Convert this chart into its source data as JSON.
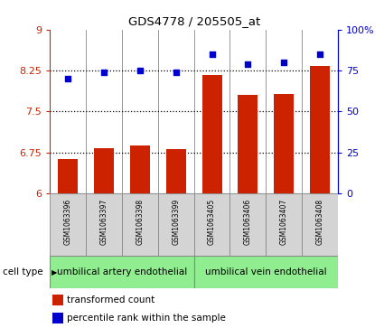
{
  "title": "GDS4778 / 205505_at",
  "samples": [
    "GSM1063396",
    "GSM1063397",
    "GSM1063398",
    "GSM1063399",
    "GSM1063405",
    "GSM1063406",
    "GSM1063407",
    "GSM1063408"
  ],
  "bar_values": [
    6.63,
    6.83,
    6.88,
    6.82,
    8.17,
    7.8,
    7.82,
    8.33
  ],
  "dot_values": [
    70,
    74,
    75,
    74,
    85,
    79,
    80,
    85
  ],
  "bar_color": "#cc2200",
  "dot_color": "#0000cc",
  "ylim_left": [
    6,
    9
  ],
  "ylim_right": [
    0,
    100
  ],
  "yticks_left": [
    6,
    6.75,
    7.5,
    8.25,
    9
  ],
  "ytick_labels_left": [
    "6",
    "6.75",
    "7.5",
    "8.25",
    "9"
  ],
  "yticks_right": [
    0,
    25,
    50,
    75,
    100
  ],
  "ytick_labels_right": [
    "0",
    "25",
    "50",
    "75",
    "100%"
  ],
  "hlines": [
    6.75,
    7.5,
    8.25
  ],
  "cell_types": [
    {
      "label": "umbilical artery endothelial",
      "color": "#90ee90",
      "start": 0,
      "end": 4
    },
    {
      "label": "umbilical vein endothelial",
      "color": "#90ee90",
      "start": 4,
      "end": 8
    }
  ],
  "cell_type_label": "cell type",
  "legend_bar_label": "transformed count",
  "legend_dot_label": "percentile rank within the sample",
  "background_color": "#ffffff",
  "sample_bg_color": "#d4d4d4",
  "grid_color": "#888888"
}
